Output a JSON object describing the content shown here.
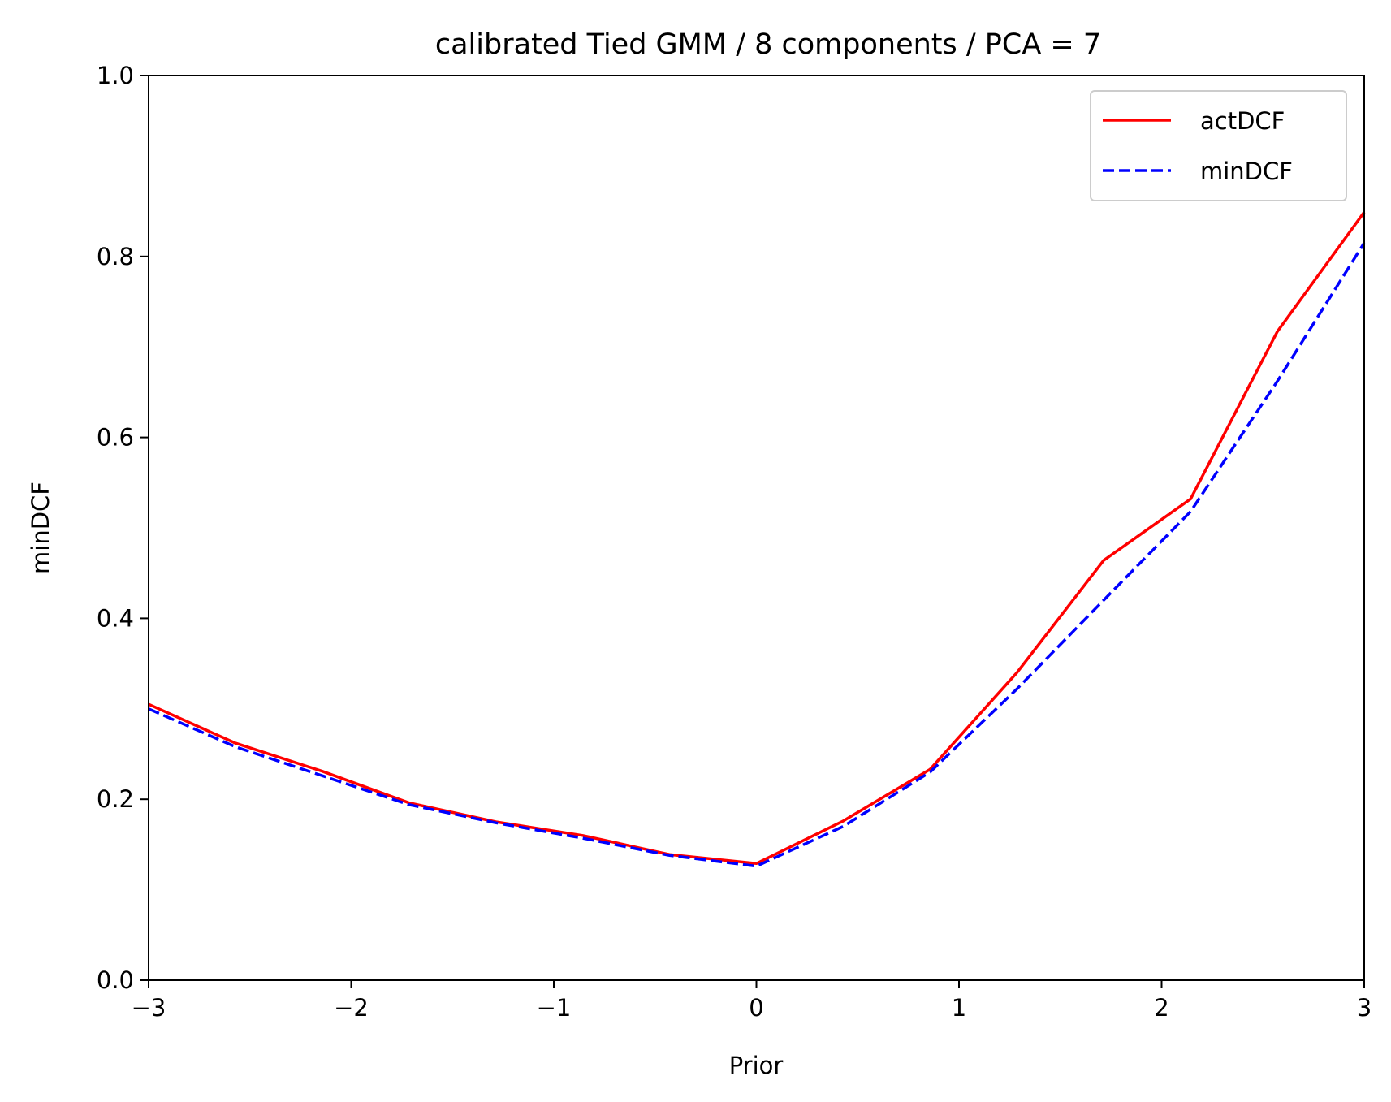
{
  "chart_data": {
    "type": "line",
    "title": "calibrated  Tied GMM / 8 components / PCA = 7",
    "xlabel": "Prior",
    "ylabel": "minDCF",
    "xlim": [
      -3,
      3
    ],
    "ylim": [
      0.0,
      1.0
    ],
    "x_ticks": [
      -3,
      -2,
      -1,
      0,
      1,
      2,
      3
    ],
    "x_tick_labels": [
      "−3",
      "−2",
      "−1",
      "0",
      "1",
      "2",
      "3"
    ],
    "y_ticks": [
      0.0,
      0.2,
      0.4,
      0.6,
      0.8,
      1.0
    ],
    "y_tick_labels": [
      "0.0",
      "0.2",
      "0.4",
      "0.6",
      "0.8",
      "1.0"
    ],
    "grid": false,
    "legend_position": "top-right",
    "x": [
      -3.0,
      -2.571,
      -2.143,
      -1.714,
      -1.286,
      -0.857,
      -0.429,
      0.0,
      0.429,
      0.857,
      1.286,
      1.714,
      2.143,
      2.571,
      3.0
    ],
    "series": [
      {
        "name": "actDCF",
        "color": "#ff0000",
        "style": "solid",
        "values": [
          0.305,
          0.262,
          0.231,
          0.196,
          0.175,
          0.16,
          0.139,
          0.129,
          0.176,
          0.233,
          0.34,
          0.464,
          0.532,
          0.717,
          0.849
        ]
      },
      {
        "name": "minDCF",
        "color": "#0000ff",
        "style": "dashed",
        "values": [
          0.3,
          0.258,
          0.226,
          0.194,
          0.174,
          0.157,
          0.138,
          0.126,
          0.17,
          0.23,
          0.322,
          0.42,
          0.518,
          0.662,
          0.815
        ]
      }
    ]
  }
}
